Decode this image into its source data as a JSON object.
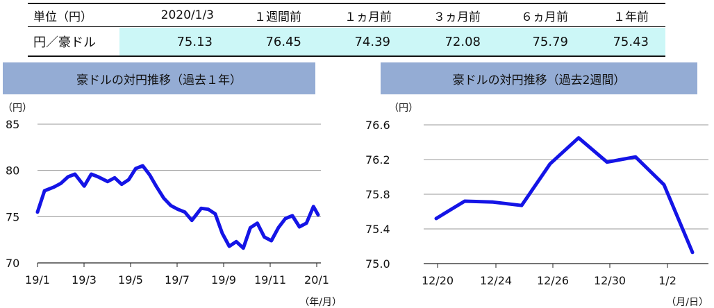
{
  "table": {
    "headers": [
      "単位（円）",
      "2020/1/3",
      "１週間前",
      "１ヵ月前",
      "３ヵ月前",
      "６ヵ月前",
      "１年前"
    ],
    "row_label": "円／豪ドル",
    "values": [
      "75.13",
      "76.45",
      "74.39",
      "72.08",
      "75.79",
      "75.43"
    ],
    "highlight_color": "#ccf7f7"
  },
  "chart_data": [
    {
      "type": "line",
      "title": "豪ドルの対円推移（過去１年）",
      "ylabel": "（円）",
      "xlabel": "（年/月）",
      "ylim": [
        70,
        85
      ],
      "yticks": [
        "85",
        "80",
        "75",
        "70"
      ],
      "xticks": [
        "19/1",
        "19/3",
        "19/5",
        "19/7",
        "19/9",
        "19/11",
        "20/1"
      ],
      "grid": true,
      "series": [
        {
          "color": "#1414e6",
          "x": [
            0.0,
            0.3,
            0.7,
            1.0,
            1.3,
            1.6,
            2.0,
            2.3,
            2.6,
            3.0,
            3.3,
            3.6,
            3.9,
            4.2,
            4.5,
            4.8,
            5.1,
            5.4,
            5.7,
            6.0,
            6.3,
            6.6,
            7.0,
            7.3,
            7.6,
            7.9,
            8.2,
            8.5,
            8.8,
            9.1,
            9.4,
            9.7,
            10.0,
            10.3,
            10.6,
            10.9,
            11.2,
            11.5,
            11.8,
            12.0
          ],
          "values": [
            75.5,
            77.8,
            78.2,
            78.6,
            79.3,
            79.6,
            78.3,
            79.6,
            79.3,
            78.8,
            79.2,
            78.5,
            79.0,
            80.2,
            80.5,
            79.5,
            78.2,
            77.0,
            76.2,
            75.8,
            75.5,
            74.6,
            75.9,
            75.8,
            75.3,
            73.2,
            71.8,
            72.3,
            71.6,
            73.8,
            74.3,
            72.8,
            72.4,
            73.8,
            74.8,
            75.1,
            73.9,
            74.3,
            76.1,
            75.2
          ]
        }
      ]
    },
    {
      "type": "line",
      "title": "豪ドルの対円推移（過去2週間）",
      "ylabel": "（円）",
      "xlabel": "（月/日）",
      "ylim": [
        75.0,
        76.6
      ],
      "yticks": [
        "76.6",
        "76.2",
        "75.8",
        "75.4",
        "75.0"
      ],
      "xticks": [
        "12/20",
        "12/24",
        "12/26",
        "12/30",
        "1/2"
      ],
      "grid": true,
      "series": [
        {
          "color": "#1414e6",
          "x": [
            0,
            1,
            2,
            3,
            4,
            5,
            6,
            7,
            8,
            9
          ],
          "values": [
            75.52,
            75.72,
            75.71,
            75.67,
            76.15,
            76.45,
            76.17,
            76.23,
            75.91,
            75.13
          ]
        }
      ]
    }
  ]
}
